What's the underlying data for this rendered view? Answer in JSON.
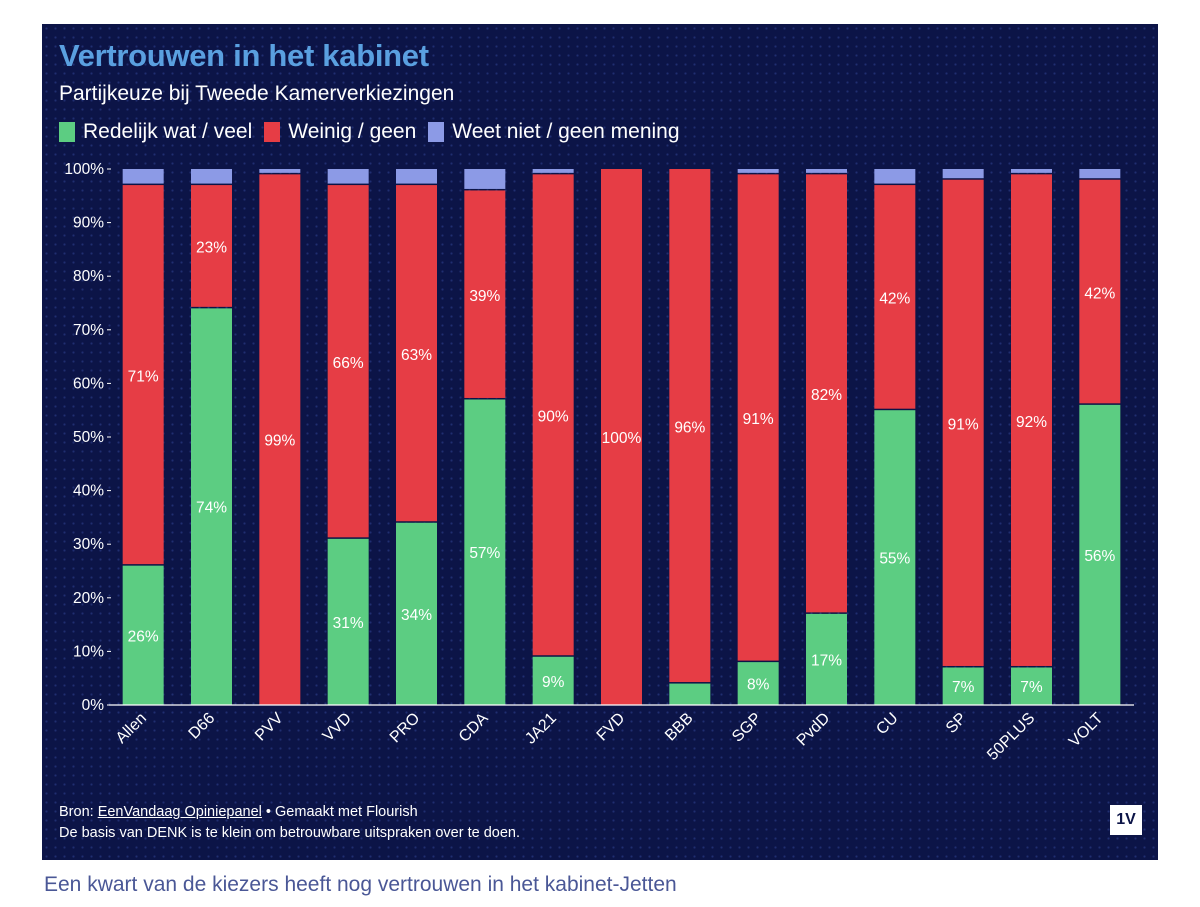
{
  "title": "Vertrouwen in het kabinet",
  "subtitle": "Partijkeuze bij Tweede Kamerverkiezingen",
  "legend": [
    {
      "label": "Redelijk wat / veel",
      "color": "#5ccd82"
    },
    {
      "label": "Weinig / geen",
      "color": "#e63d45"
    },
    {
      "label": "Weet niet / geen mening",
      "color": "#8c9ae6"
    }
  ],
  "footer": {
    "source_prefix": "Bron: ",
    "source_link": "EenVandaag Opiniepanel",
    "source_suffix": " • Gemaakt met Flourish",
    "note": "De basis van DENK is te klein om betrouwbare uitspraken over te doen."
  },
  "logo": "1V",
  "caption": "Een kwart van de kiezers heeft nog vertrouwen in het kabinet-Jetten",
  "chart_data": {
    "type": "bar",
    "stacked": true,
    "categories": [
      "Allen",
      "D66",
      "PVV",
      "VVD",
      "PRO",
      "CDA",
      "JA21",
      "FVD",
      "BBB",
      "SGP",
      "PvdD",
      "CU",
      "SP",
      "50PLUS",
      "VOLT"
    ],
    "series": [
      {
        "name": "Redelijk wat / veel",
        "color": "#5ccd82",
        "values": [
          26,
          74,
          0,
          31,
          34,
          57,
          9,
          0,
          4,
          8,
          17,
          55,
          7,
          7,
          56
        ]
      },
      {
        "name": "Weinig / geen",
        "color": "#e63d45",
        "values": [
          71,
          23,
          99,
          66,
          63,
          39,
          90,
          100,
          96,
          91,
          82,
          42,
          91,
          92,
          42
        ]
      },
      {
        "name": "Weet niet / geen mening",
        "color": "#8c9ae6",
        "values": [
          3,
          3,
          1,
          3,
          3,
          4,
          1,
          0,
          0,
          1,
          1,
          3,
          2,
          1,
          2
        ]
      }
    ],
    "data_labels": [
      [
        "26%",
        "74%",
        "",
        "31%",
        "34%",
        "57%",
        "9%",
        "",
        "",
        "8%",
        "17%",
        "55%",
        "7%",
        "7%",
        "56%"
      ],
      [
        "71%",
        "23%",
        "99%",
        "66%",
        "63%",
        "39%",
        "90%",
        "100%",
        "96%",
        "91%",
        "82%",
        "42%",
        "91%",
        "92%",
        "42%"
      ],
      [
        "",
        "",
        "",
        "",
        "",
        "",
        "",
        "",
        "",
        "",
        "",
        "",
        "",
        "",
        ""
      ]
    ],
    "y_ticks": [
      "0%",
      "10%",
      "20%",
      "30%",
      "40%",
      "50%",
      "60%",
      "70%",
      "80%",
      "90%",
      "100%"
    ],
    "ylim": [
      0,
      100
    ]
  }
}
